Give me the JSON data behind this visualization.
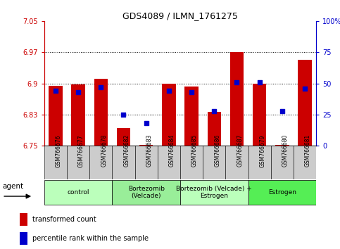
{
  "title": "GDS4089 / ILMN_1761275",
  "samples": [
    "GSM766676",
    "GSM766677",
    "GSM766678",
    "GSM766682",
    "GSM766683",
    "GSM766684",
    "GSM766685",
    "GSM766686",
    "GSM766687",
    "GSM766679",
    "GSM766680",
    "GSM766681"
  ],
  "red_values": [
    6.895,
    6.897,
    6.912,
    6.793,
    6.752,
    6.9,
    6.892,
    6.832,
    6.975,
    6.9,
    6.752,
    6.957
  ],
  "blue_values": [
    44,
    43,
    47,
    25,
    18,
    44,
    43,
    28,
    51,
    51,
    28,
    46
  ],
  "y_min": 6.75,
  "y_max": 7.05,
  "y_ticks_left": [
    6.75,
    6.825,
    6.9,
    6.975,
    7.05
  ],
  "y_ticks_right": [
    0,
    25,
    50,
    75,
    100
  ],
  "groups": [
    {
      "label": "control",
      "indices": [
        0,
        1,
        2
      ],
      "color": "#bbffbb"
    },
    {
      "label": "Bortezomib\n(Velcade)",
      "indices": [
        3,
        4,
        5
      ],
      "color": "#99ee99"
    },
    {
      "label": "Bortezomib (Velcade) +\nEstrogen",
      "indices": [
        6,
        7,
        8
      ],
      "color": "#bbffbb"
    },
    {
      "label": "Estrogen",
      "indices": [
        9,
        10,
        11
      ],
      "color": "#55ee55"
    }
  ],
  "bar_color": "#cc0000",
  "dot_color": "#0000cc",
  "bar_width": 0.6,
  "agent_label": "agent",
  "legend_items": [
    {
      "color": "#cc0000",
      "label": "transformed count"
    },
    {
      "color": "#0000cc",
      "label": "percentile rank within the sample"
    }
  ],
  "sample_box_color": "#cccccc",
  "grid_color": "#000000",
  "left_axis_color": "#cc0000",
  "right_axis_color": "#0000cc"
}
